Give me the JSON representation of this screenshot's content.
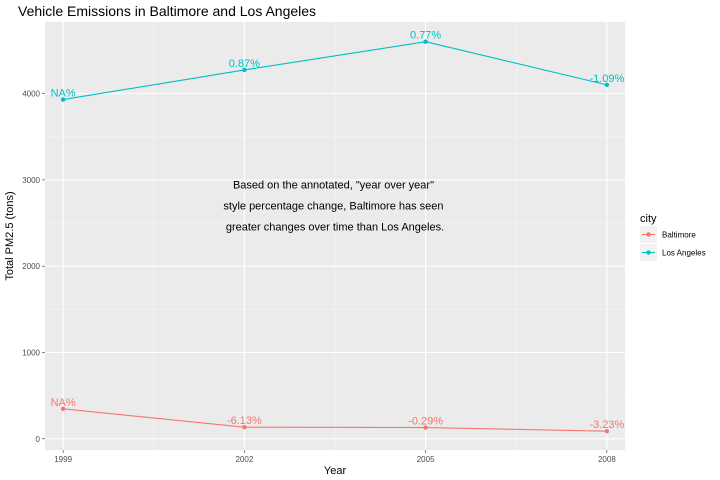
{
  "chart_data": {
    "type": "line",
    "title": "Vehicle Emissions in Baltimore and Los Angeles",
    "xlabel": "Year",
    "ylabel": "Total PM2.5 (tons)",
    "x": [
      1999,
      2002,
      2005,
      2008
    ],
    "xticks": [
      "1999",
      "2002",
      "2005",
      "2008"
    ],
    "yticks": [
      0,
      1000,
      2000,
      3000,
      4000
    ],
    "xlim": [
      1998.7,
      2008.3
    ],
    "ylim": [
      -130,
      4830
    ],
    "grid": true,
    "legend": {
      "title": "city",
      "position": "right",
      "entries": [
        "Baltimore",
        "Los Angeles"
      ]
    },
    "series": [
      {
        "name": "Baltimore",
        "color": "#F8766D",
        "values": [
          346.8,
          134.3,
          130.4,
          88.3
        ],
        "labels": [
          "NA%",
          "-6.13%",
          "-0.29%",
          "-3.23%"
        ]
      },
      {
        "name": "Los Angeles",
        "color": "#00BFC4",
        "values": [
          3931.1,
          4274.0,
          4601.4,
          4101.3
        ],
        "labels": [
          "NA%",
          "0.87%",
          "0.77%",
          "-1.09%"
        ]
      }
    ],
    "annotation": {
      "lines": [
        "Based on the annotated, \"year over year\"",
        "style percentage change, Baltimore has seen",
        "greater changes over time than Los Angeles."
      ],
      "x": 2003.5,
      "y": 2900
    }
  }
}
